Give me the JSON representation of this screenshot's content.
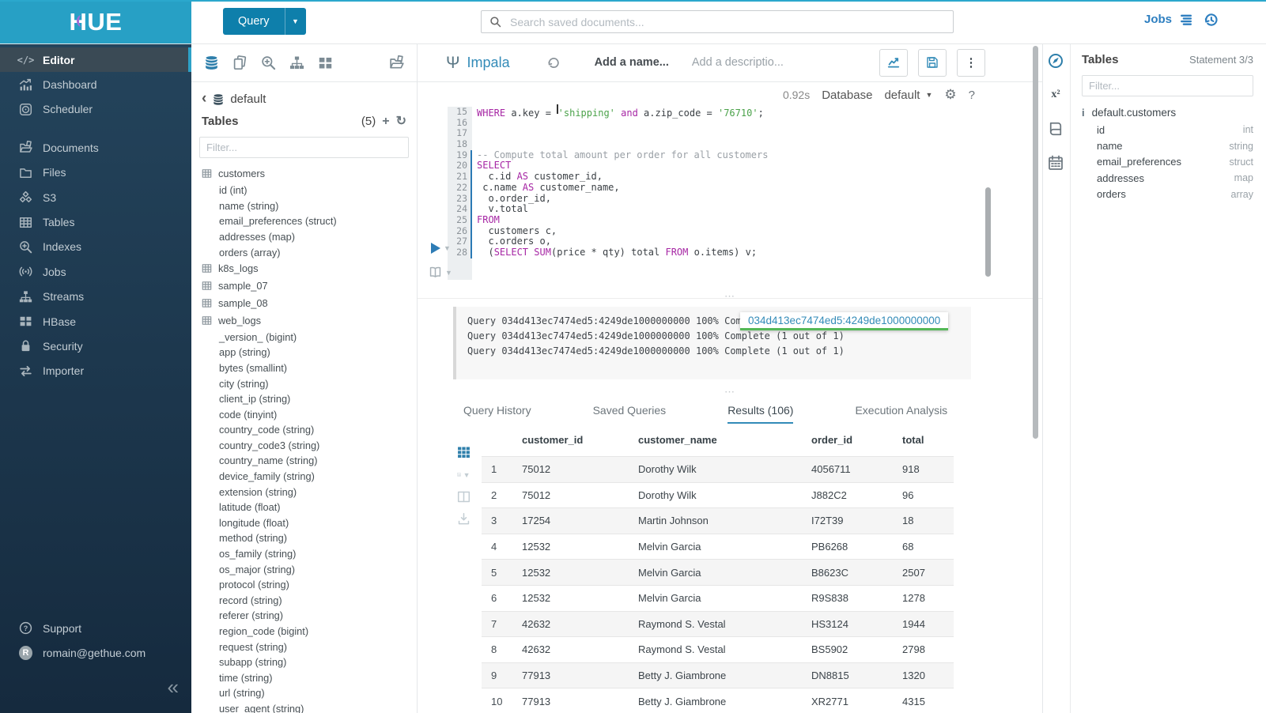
{
  "brand": {
    "logo_text": "HUE"
  },
  "topbar": {
    "query_button": "Query",
    "search_placeholder": "Search saved documents...",
    "jobs_label": "Jobs"
  },
  "sidebar": {
    "groups": [
      [
        {
          "label": "Editor",
          "icon": "code-icon",
          "active": true
        },
        {
          "label": "Dashboard",
          "icon": "dashboard-icon"
        },
        {
          "label": "Scheduler",
          "icon": "scheduler-icon"
        }
      ],
      [
        {
          "label": "Documents",
          "icon": "documents-icon"
        },
        {
          "label": "Files",
          "icon": "folder-icon"
        },
        {
          "label": "S3",
          "icon": "s3-cubes-icon"
        },
        {
          "label": "Tables",
          "icon": "table-icon"
        },
        {
          "label": "Indexes",
          "icon": "search-plus-icon"
        },
        {
          "label": "Jobs",
          "icon": "broadcast-icon"
        },
        {
          "label": "Streams",
          "icon": "sitemap-icon"
        },
        {
          "label": "HBase",
          "icon": "blocks-icon"
        },
        {
          "label": "Security",
          "icon": "lock-icon"
        },
        {
          "label": "Importer",
          "icon": "swap-icon"
        }
      ]
    ],
    "footer": [
      {
        "label": "Support",
        "icon": "help-icon"
      },
      {
        "label": "romain@gethue.com",
        "icon": "avatar-r"
      }
    ]
  },
  "left_assist": {
    "database": "default",
    "tables_label": "Tables",
    "count": "(5)",
    "filter_placeholder": "Filter...",
    "tables": [
      {
        "name": "customers",
        "columns": [
          {
            "name": "id",
            "type": "int"
          },
          {
            "name": "name",
            "type": "string"
          },
          {
            "name": "email_preferences",
            "type": "struct"
          },
          {
            "name": "addresses",
            "type": "map"
          },
          {
            "name": "orders",
            "type": "array"
          }
        ]
      },
      {
        "name": "k8s_logs",
        "columns": []
      },
      {
        "name": "sample_07",
        "columns": []
      },
      {
        "name": "sample_08",
        "columns": []
      },
      {
        "name": "web_logs",
        "columns": [
          {
            "name": "_version_",
            "type": "bigint"
          },
          {
            "name": "app",
            "type": "string"
          },
          {
            "name": "bytes",
            "type": "smallint"
          },
          {
            "name": "city",
            "type": "string"
          },
          {
            "name": "client_ip",
            "type": "string"
          },
          {
            "name": "code",
            "type": "tinyint"
          },
          {
            "name": "country_code",
            "type": "string"
          },
          {
            "name": "country_code3",
            "type": "string"
          },
          {
            "name": "country_name",
            "type": "string"
          },
          {
            "name": "device_family",
            "type": "string"
          },
          {
            "name": "extension",
            "type": "string"
          },
          {
            "name": "latitude",
            "type": "float"
          },
          {
            "name": "longitude",
            "type": "float"
          },
          {
            "name": "method",
            "type": "string"
          },
          {
            "name": "os_family",
            "type": "string"
          },
          {
            "name": "os_major",
            "type": "string"
          },
          {
            "name": "protocol",
            "type": "string"
          },
          {
            "name": "record",
            "type": "string"
          },
          {
            "name": "referer",
            "type": "string"
          },
          {
            "name": "region_code",
            "type": "bigint"
          },
          {
            "name": "request",
            "type": "string"
          },
          {
            "name": "subapp",
            "type": "string"
          },
          {
            "name": "time",
            "type": "string"
          },
          {
            "name": "url",
            "type": "string"
          },
          {
            "name": "user_agent",
            "type": "string"
          }
        ]
      }
    ]
  },
  "editor": {
    "engine": "Impala",
    "name_placeholder": "Add a name...",
    "description_placeholder": "Add a descriptio...",
    "duration": "0.92s",
    "database_label": "Database",
    "database_value": "default",
    "code_lines": [
      {
        "n": 15,
        "seg": [
          {
            "t": "WHERE",
            "c": "kw"
          },
          {
            "t": " a.key = "
          },
          {
            "t": "",
            "c": "cursor"
          },
          {
            "t": "'shipping'",
            "c": "str"
          },
          {
            "t": " "
          },
          {
            "t": "and",
            "c": "kw"
          },
          {
            "t": " a.zip_code = "
          },
          {
            "t": "'76710'",
            "c": "str"
          },
          {
            "t": ";"
          }
        ]
      },
      {
        "n": 16,
        "seg": []
      },
      {
        "n": 17,
        "seg": []
      },
      {
        "n": 18,
        "seg": []
      },
      {
        "n": 19,
        "seg": [
          {
            "t": "-- Compute total amount per order for all customers",
            "c": "cmt"
          }
        ]
      },
      {
        "n": 20,
        "seg": [
          {
            "t": "SELECT",
            "c": "kw"
          }
        ]
      },
      {
        "n": 21,
        "seg": [
          {
            "t": "  c.id "
          },
          {
            "t": "AS",
            "c": "kw"
          },
          {
            "t": " customer_id,"
          }
        ]
      },
      {
        "n": 22,
        "seg": [
          {
            "t": " c.name "
          },
          {
            "t": "AS",
            "c": "kw"
          },
          {
            "t": " customer_name,"
          }
        ]
      },
      {
        "n": 23,
        "seg": [
          {
            "t": "  o.order_id,"
          }
        ]
      },
      {
        "n": 24,
        "seg": [
          {
            "t": "  v.total"
          }
        ]
      },
      {
        "n": 25,
        "seg": [
          {
            "t": "FROM",
            "c": "kw"
          }
        ]
      },
      {
        "n": 26,
        "seg": [
          {
            "t": "  customers c,"
          }
        ]
      },
      {
        "n": 27,
        "seg": [
          {
            "t": "  c.orders o,"
          }
        ]
      },
      {
        "n": 28,
        "seg": [
          {
            "t": "  ("
          },
          {
            "t": "SELECT",
            "c": "kw"
          },
          {
            "t": " "
          },
          {
            "t": "SUM",
            "c": "kw"
          },
          {
            "t": "(price * qty) total "
          },
          {
            "t": "FROM",
            "c": "kw"
          },
          {
            "t": " o.items) v;"
          }
        ]
      }
    ]
  },
  "logs": {
    "lines": [
      "Query 034d413ec7474ed5:4249de1000000000 100% Complete (1 out of 1)",
      "Query 034d413ec7474ed5:4249de1000000000 100% Complete (1 out of 1)",
      "Query 034d413ec7474ed5:4249de1000000000 100% Complete (1 out of 1)"
    ],
    "tooltip": "034d413ec7474ed5:4249de1000000000"
  },
  "tabs": [
    {
      "label": "Query History",
      "active": false
    },
    {
      "label": "Saved Queries",
      "active": false
    },
    {
      "label": "Results (106)",
      "active": true
    },
    {
      "label": "Execution Analysis",
      "active": false
    }
  ],
  "results": {
    "columns": [
      "customer_id",
      "customer_name",
      "order_id",
      "total"
    ],
    "rows": [
      [
        "1",
        "75012",
        "Dorothy Wilk",
        "4056711",
        "918"
      ],
      [
        "2",
        "75012",
        "Dorothy Wilk",
        "J882C2",
        "96"
      ],
      [
        "3",
        "17254",
        "Martin Johnson",
        "I72T39",
        "18"
      ],
      [
        "4",
        "12532",
        "Melvin Garcia",
        "PB6268",
        "68"
      ],
      [
        "5",
        "12532",
        "Melvin Garcia",
        "B8623C",
        "2507"
      ],
      [
        "6",
        "12532",
        "Melvin Garcia",
        "R9S838",
        "1278"
      ],
      [
        "7",
        "42632",
        "Raymond S. Vestal",
        "HS3124",
        "1944"
      ],
      [
        "8",
        "42632",
        "Raymond S. Vestal",
        "BS5902",
        "2798"
      ],
      [
        "9",
        "77913",
        "Betty J. Giambrone",
        "DN8815",
        "1320"
      ],
      [
        "10",
        "77913",
        "Betty J. Giambrone",
        "XR2771",
        "4315"
      ]
    ]
  },
  "right_assist": {
    "title": "Tables",
    "statement": "Statement 3/3",
    "filter_placeholder": "Filter...",
    "table": "default.customers",
    "columns": [
      {
        "name": "id",
        "type": "int"
      },
      {
        "name": "name",
        "type": "string"
      },
      {
        "name": "email_preferences",
        "type": "struct"
      },
      {
        "name": "addresses",
        "type": "map"
      },
      {
        "name": "orders",
        "type": "array"
      }
    ]
  },
  "colors": {
    "brand_cyan": "#27a0c5",
    "accent_blue": "#338bb8",
    "button_blue": "#0e7fab",
    "keyword": "#a626a4",
    "string": "#4ba24a",
    "comment": "#9aa0a6",
    "tab_underline": "#338bb8",
    "tooltip_underline": "#54b857"
  }
}
